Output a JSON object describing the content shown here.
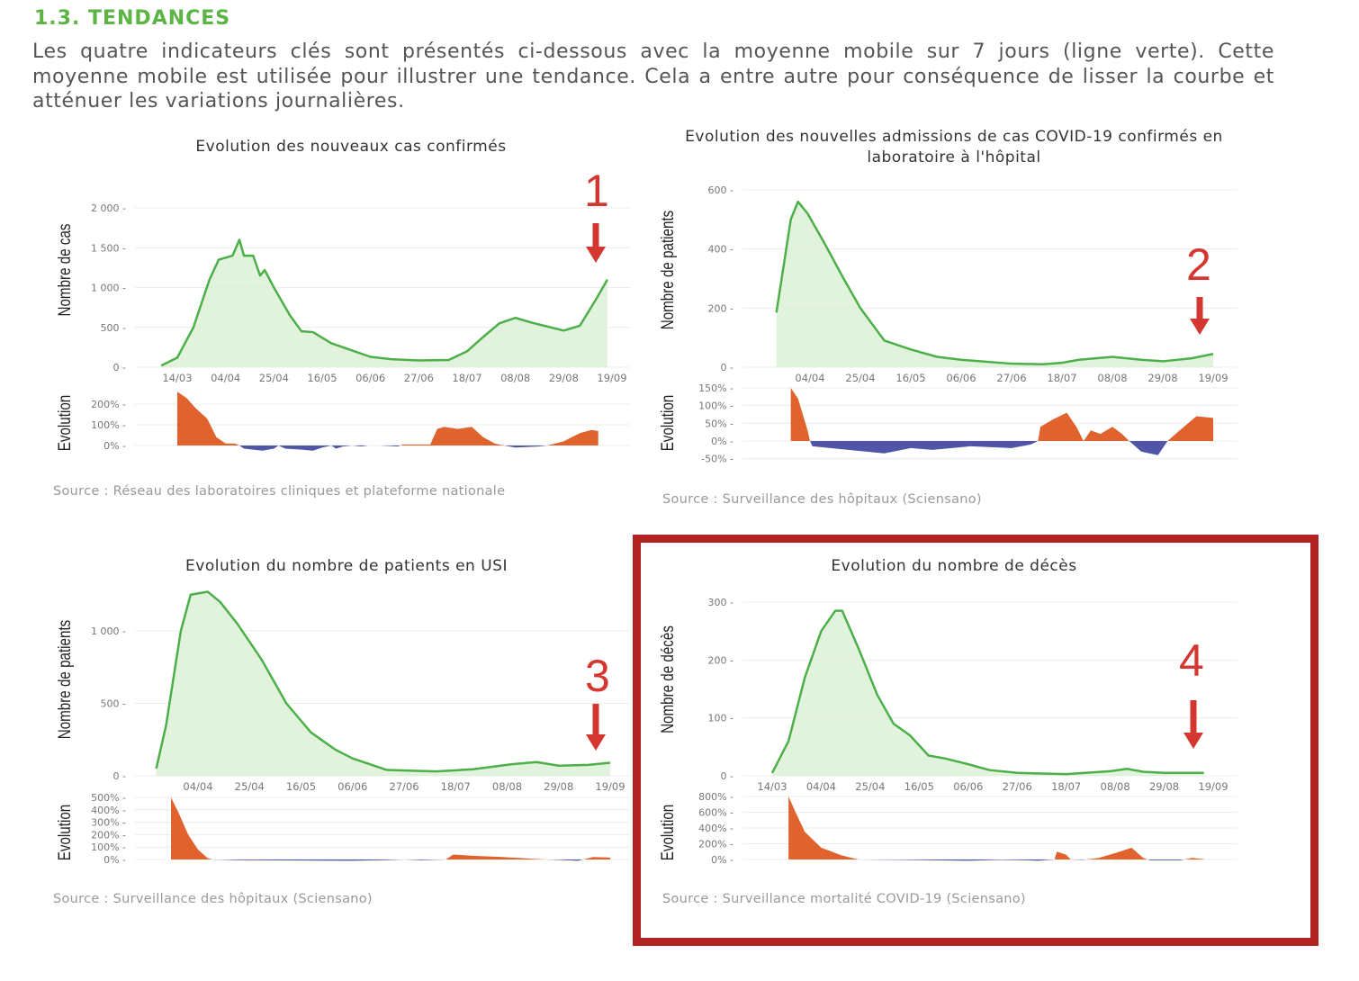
{
  "section_title": "1.3. TENDANCES",
  "intro": "Les quatre indicateurs clés sont présentés ci-dessous avec la moyenne mobile sur 7 jours (ligne verte). Cette moyenne mobile est utilisée pour illustrer une tendance. Cela a entre autre pour conséquence de lisser la courbe et atténuer les variations journalières.",
  "colors": {
    "moving_average": "#4daf4a",
    "daily_bars": "#d9efd5",
    "positive": "#e0622c",
    "negative": "#5155a8",
    "annotation": "#d43630",
    "highlight_frame": "#b22222",
    "section_title": "#5bb443"
  },
  "annotations": [
    "1",
    "2",
    "3",
    "4"
  ],
  "chart_data": [
    {
      "type": "bar+line",
      "title": "Evolution des nouveaux cas confirmés",
      "ylabel": "Nombre de cas",
      "ylabel_evolution": "Evolution",
      "source": "Source : Réseau des laboratoires cliniques et plateforme nationale",
      "x_ticks": [
        "14/03",
        "04/04",
        "25/04",
        "16/05",
        "06/06",
        "27/06",
        "18/07",
        "08/08",
        "29/08",
        "19/09"
      ],
      "y_ticks": [
        {
          "v": 0,
          "label": "0"
        },
        {
          "v": 500,
          "label": "500"
        },
        {
          "v": 1000,
          "label": "1 000"
        },
        {
          "v": 1500,
          "label": "1 500"
        },
        {
          "v": 2000,
          "label": "2 000"
        }
      ],
      "evo_ticks": [
        {
          "v": 0,
          "label": "0%"
        },
        {
          "v": 100,
          "label": "100%"
        },
        {
          "v": 200,
          "label": "200%"
        }
      ],
      "moving_average": [
        [
          "07/03",
          20
        ],
        [
          "14/03",
          120
        ],
        [
          "21/03",
          500
        ],
        [
          "28/03",
          1100
        ],
        [
          "01/04",
          1350
        ],
        [
          "07/04",
          1400
        ],
        [
          "10/04",
          1600
        ],
        [
          "12/04",
          1400
        ],
        [
          "16/04",
          1400
        ],
        [
          "19/04",
          1150
        ],
        [
          "21/04",
          1220
        ],
        [
          "25/04",
          1000
        ],
        [
          "02/05",
          650
        ],
        [
          "07/05",
          450
        ],
        [
          "12/05",
          440
        ],
        [
          "20/05",
          300
        ],
        [
          "30/05",
          200
        ],
        [
          "06/06",
          130
        ],
        [
          "15/06",
          100
        ],
        [
          "27/06",
          85
        ],
        [
          "10/07",
          90
        ],
        [
          "18/07",
          200
        ],
        [
          "25/07",
          380
        ],
        [
          "01/08",
          550
        ],
        [
          "08/08",
          620
        ],
        [
          "15/08",
          560
        ],
        [
          "22/08",
          510
        ],
        [
          "29/08",
          460
        ],
        [
          "05/09",
          520
        ],
        [
          "12/09",
          850
        ],
        [
          "17/09",
          1100
        ]
      ],
      "evolution_pct": [
        [
          "14/03",
          260
        ],
        [
          "18/03",
          230
        ],
        [
          "22/03",
          180
        ],
        [
          "27/03",
          130
        ],
        [
          "31/03",
          40
        ],
        [
          "04/04",
          10
        ],
        [
          "08/04",
          10
        ],
        [
          "10/04",
          0
        ],
        [
          "12/04",
          -15
        ],
        [
          "20/04",
          -25
        ],
        [
          "25/04",
          -15
        ],
        [
          "27/04",
          0
        ],
        [
          "30/04",
          -15
        ],
        [
          "07/05",
          -20
        ],
        [
          "12/05",
          -25
        ],
        [
          "16/05",
          -10
        ],
        [
          "20/05",
          0
        ],
        [
          "22/05",
          -15
        ],
        [
          "25/05",
          -5
        ],
        [
          "29/05",
          0
        ],
        [
          "02/06",
          -5
        ],
        [
          "05/06",
          0
        ],
        [
          "10/06",
          0
        ],
        [
          "18/06",
          -5
        ],
        [
          "20/06",
          5
        ],
        [
          "02/07",
          5
        ],
        [
          "05/07",
          80
        ],
        [
          "08/07",
          90
        ],
        [
          "14/07",
          80
        ],
        [
          "20/07",
          90
        ],
        [
          "25/07",
          40
        ],
        [
          "30/07",
          10
        ],
        [
          "03/08",
          0
        ],
        [
          "08/08",
          -10
        ],
        [
          "18/08",
          -5
        ],
        [
          "22/08",
          0
        ],
        [
          "29/08",
          20
        ],
        [
          "05/09",
          60
        ],
        [
          "10/09",
          75
        ],
        [
          "13/09",
          70
        ]
      ]
    },
    {
      "type": "bar+line",
      "title": "Evolution des nouvelles admissions de cas COVID-19 confirmés en laboratoire à l'hôpital",
      "ylabel": "Nombre de patients",
      "ylabel_evolution": "Evolution",
      "source": "Source : Surveillance des hôpitaux (Sciensano)",
      "x_ticks": [
        "04/04",
        "25/04",
        "16/05",
        "06/06",
        "27/06",
        "18/07",
        "08/08",
        "29/08",
        "19/09"
      ],
      "y_ticks": [
        {
          "v": 0,
          "label": "0"
        },
        {
          "v": 200,
          "label": "200"
        },
        {
          "v": 400,
          "label": "400"
        },
        {
          "v": 600,
          "label": "600"
        }
      ],
      "evo_ticks": [
        {
          "v": -50,
          "label": "-50%"
        },
        {
          "v": 0,
          "label": "0%"
        },
        {
          "v": 50,
          "label": "50%"
        },
        {
          "v": 100,
          "label": "100%"
        },
        {
          "v": 150,
          "label": "150%"
        }
      ],
      "moving_average": [
        [
          "21/03",
          185
        ],
        [
          "27/03",
          500
        ],
        [
          "30/03",
          560
        ],
        [
          "03/04",
          520
        ],
        [
          "10/04",
          420
        ],
        [
          "18/04",
          300
        ],
        [
          "25/04",
          200
        ],
        [
          "05/05",
          90
        ],
        [
          "16/05",
          60
        ],
        [
          "27/05",
          35
        ],
        [
          "06/06",
          25
        ],
        [
          "27/06",
          12
        ],
        [
          "10/07",
          10
        ],
        [
          "18/07",
          15
        ],
        [
          "25/07",
          25
        ],
        [
          "08/08",
          35
        ],
        [
          "20/08",
          25
        ],
        [
          "29/08",
          20
        ],
        [
          "10/09",
          30
        ],
        [
          "19/09",
          45
        ]
      ],
      "evolution_pct": [
        [
          "27/03",
          150
        ],
        [
          "30/03",
          120
        ],
        [
          "03/04",
          30
        ],
        [
          "04/04",
          0
        ],
        [
          "05/04",
          -15
        ],
        [
          "20/04",
          -25
        ],
        [
          "05/05",
          -35
        ],
        [
          "16/05",
          -20
        ],
        [
          "25/05",
          -25
        ],
        [
          "10/06",
          -15
        ],
        [
          "27/06",
          -20
        ],
        [
          "05/07",
          -10
        ],
        [
          "08/07",
          0
        ],
        [
          "09/07",
          40
        ],
        [
          "14/07",
          60
        ],
        [
          "20/07",
          80
        ],
        [
          "24/07",
          40
        ],
        [
          "27/07",
          0
        ],
        [
          "30/07",
          30
        ],
        [
          "03/08",
          20
        ],
        [
          "08/08",
          40
        ],
        [
          "12/08",
          20
        ],
        [
          "15/08",
          0
        ],
        [
          "20/08",
          -30
        ],
        [
          "27/08",
          -40
        ],
        [
          "31/08",
          0
        ],
        [
          "05/09",
          30
        ],
        [
          "12/09",
          70
        ],
        [
          "19/09",
          65
        ]
      ]
    },
    {
      "type": "bar+line",
      "title": "Evolution du nombre de patients en USI",
      "ylabel": "Nombre de patients",
      "ylabel_evolution": "Evolution",
      "source": "Source : Surveillance des hôpitaux (Sciensano)",
      "x_ticks": [
        "04/04",
        "25/04",
        "16/05",
        "06/06",
        "27/06",
        "18/07",
        "08/08",
        "29/08",
        "19/09"
      ],
      "y_ticks": [
        {
          "v": 0,
          "label": "0"
        },
        {
          "v": 500,
          "label": "500"
        },
        {
          "v": 1000,
          "label": "1 000"
        }
      ],
      "evo_ticks": [
        {
          "v": 0,
          "label": "0%"
        },
        {
          "v": 100,
          "label": "100%"
        },
        {
          "v": 200,
          "label": "200%"
        },
        {
          "v": 300,
          "label": "300%"
        },
        {
          "v": 400,
          "label": "400%"
        },
        {
          "v": 500,
          "label": "500%"
        }
      ],
      "moving_average": [
        [
          "18/03",
          50
        ],
        [
          "22/03",
          350
        ],
        [
          "28/03",
          1000
        ],
        [
          "01/04",
          1250
        ],
        [
          "08/04",
          1270
        ],
        [
          "13/04",
          1200
        ],
        [
          "20/04",
          1050
        ],
        [
          "30/04",
          800
        ],
        [
          "10/05",
          500
        ],
        [
          "20/05",
          300
        ],
        [
          "30/05",
          180
        ],
        [
          "06/06",
          120
        ],
        [
          "20/06",
          40
        ],
        [
          "10/07",
          30
        ],
        [
          "25/07",
          45
        ],
        [
          "10/08",
          80
        ],
        [
          "20/08",
          95
        ],
        [
          "29/08",
          70
        ],
        [
          "10/09",
          75
        ],
        [
          "19/09",
          90
        ]
      ],
      "evolution_pct": [
        [
          "24/03",
          500
        ],
        [
          "27/03",
          380
        ],
        [
          "31/03",
          200
        ],
        [
          "04/04",
          80
        ],
        [
          "08/04",
          10
        ],
        [
          "10/04",
          0
        ],
        [
          "20/04",
          -5
        ],
        [
          "06/06",
          -10
        ],
        [
          "20/06",
          -5
        ],
        [
          "27/06",
          0
        ],
        [
          "04/07",
          -5
        ],
        [
          "14/07",
          0
        ],
        [
          "17/07",
          40
        ],
        [
          "25/07",
          30
        ],
        [
          "06/08",
          20
        ],
        [
          "15/08",
          10
        ],
        [
          "24/08",
          0
        ],
        [
          "06/09",
          -10
        ],
        [
          "12/09",
          20
        ],
        [
          "19/09",
          15
        ]
      ]
    },
    {
      "type": "bar+line",
      "title": "Evolution du nombre de décès",
      "ylabel": "Nombre de décès",
      "ylabel_evolution": "Evolution",
      "source": "Source : Surveillance mortalité COVID-19 (Sciensano)",
      "x_ticks": [
        "14/03",
        "04/04",
        "25/04",
        "16/05",
        "06/06",
        "27/06",
        "18/07",
        "08/08",
        "29/08",
        "19/09"
      ],
      "y_ticks": [
        {
          "v": 0,
          "label": "0"
        },
        {
          "v": 100,
          "label": "100"
        },
        {
          "v": 200,
          "label": "200"
        },
        {
          "v": 300,
          "label": "300"
        }
      ],
      "evo_ticks": [
        {
          "v": 0,
          "label": "0%"
        },
        {
          "v": 200,
          "label": "200%"
        },
        {
          "v": 400,
          "label": "400%"
        },
        {
          "v": 600,
          "label": "600%"
        },
        {
          "v": 800,
          "label": "800%"
        }
      ],
      "moving_average": [
        [
          "14/03",
          5
        ],
        [
          "21/03",
          60
        ],
        [
          "28/03",
          170
        ],
        [
          "04/04",
          250
        ],
        [
          "10/04",
          285
        ],
        [
          "13/04",
          285
        ],
        [
          "20/04",
          220
        ],
        [
          "28/04",
          140
        ],
        [
          "05/05",
          90
        ],
        [
          "12/05",
          70
        ],
        [
          "20/05",
          35
        ],
        [
          "27/05",
          30
        ],
        [
          "06/06",
          20
        ],
        [
          "15/06",
          10
        ],
        [
          "27/06",
          5
        ],
        [
          "18/07",
          3
        ],
        [
          "06/08",
          8
        ],
        [
          "13/08",
          12
        ],
        [
          "20/08",
          7
        ],
        [
          "29/08",
          5
        ],
        [
          "15/09",
          5
        ]
      ],
      "evolution_pct": [
        [
          "21/03",
          800
        ],
        [
          "24/03",
          600
        ],
        [
          "28/03",
          350
        ],
        [
          "04/04",
          150
        ],
        [
          "13/04",
          50
        ],
        [
          "20/04",
          0
        ],
        [
          "06/06",
          -15
        ],
        [
          "20/06",
          -5
        ],
        [
          "30/06",
          -10
        ],
        [
          "06/07",
          -15
        ],
        [
          "13/07",
          0
        ],
        [
          "14/07",
          100
        ],
        [
          "18/07",
          60
        ],
        [
          "20/07",
          0
        ],
        [
          "25/07",
          -5
        ],
        [
          "01/08",
          20
        ],
        [
          "10/08",
          100
        ],
        [
          "15/08",
          150
        ],
        [
          "20/08",
          20
        ],
        [
          "23/08",
          -10
        ],
        [
          "05/09",
          -10
        ],
        [
          "10/09",
          20
        ],
        [
          "15/09",
          5
        ]
      ]
    }
  ]
}
